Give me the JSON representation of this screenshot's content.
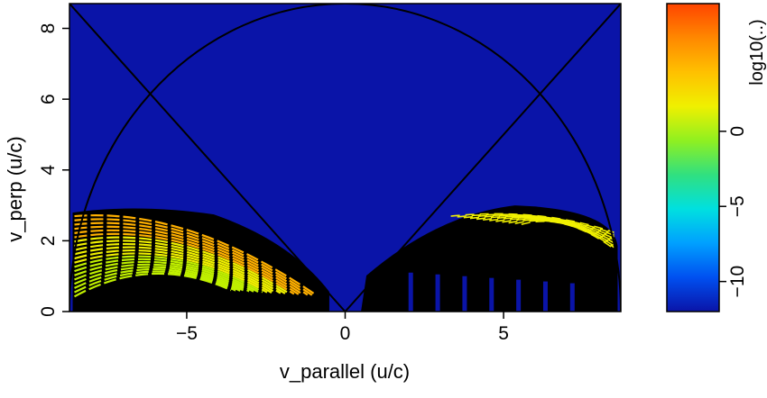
{
  "chart_data": {
    "type": "heatmap",
    "title": "",
    "xlabel": "v_parallel (u/c)",
    "ylabel": "v_perp (u/c)",
    "xlim": [
      -8.7,
      8.7
    ],
    "ylim": [
      0,
      8.7
    ],
    "xticks": [
      -5,
      0,
      5
    ],
    "xtick_labels": [
      "−5",
      "0",
      "5"
    ],
    "yticks": [
      0,
      2,
      4,
      6,
      8
    ],
    "ytick_labels": [
      "0",
      "2",
      "4",
      "6",
      "8"
    ],
    "background_color": "#0a14a8",
    "colorbar": {
      "label": "log10(..)",
      "range": [
        -12,
        8.5
      ],
      "ticks": [
        -10,
        -5,
        0
      ],
      "tick_labels": [
        "−10",
        "−5",
        "0"
      ],
      "colors": [
        "#0a14a8",
        "#0050f0",
        "#00a0ff",
        "#00e0e0",
        "#30e080",
        "#90f020",
        "#f0f000",
        "#ffc000",
        "#ff8800",
        "#ff4400"
      ]
    },
    "overlay_lines": [
      {
        "kind": "semicircle",
        "radius": 8.7,
        "center": [
          0,
          0
        ]
      },
      {
        "kind": "line",
        "from": [
          -8.7,
          8.7
        ],
        "to": [
          0,
          0
        ]
      },
      {
        "kind": "line",
        "from": [
          8.7,
          8.7
        ],
        "to": [
          0,
          0
        ]
      }
    ],
    "regions": [
      {
        "side": "left",
        "x_range": [
          -8.6,
          -0.5
        ],
        "max_v_perp": 3.0,
        "peak_log10": 2.5
      },
      {
        "side": "right",
        "x_range": [
          0.5,
          8.6
        ],
        "max_v_perp": 3.0,
        "peak_log10": 1.5
      }
    ]
  }
}
